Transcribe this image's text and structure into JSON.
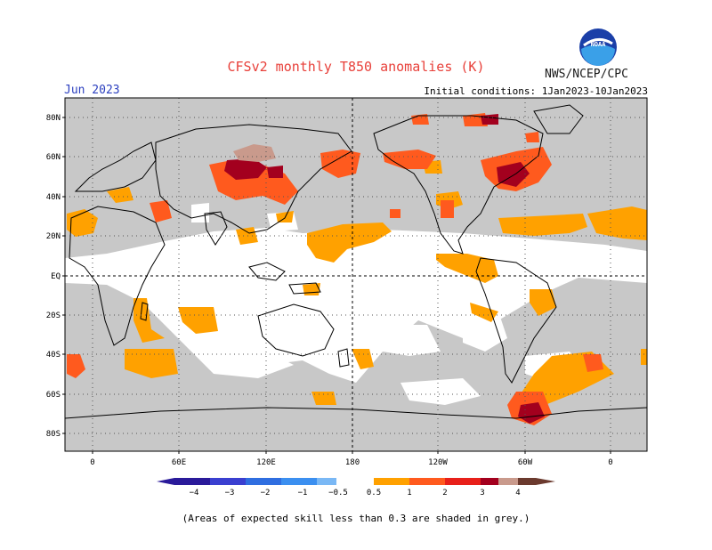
{
  "title": "CFSv2 monthly T850 anomalies (K)",
  "valid_month": "Jun 2023",
  "initial_conditions": "Initial conditions: 1Jan2023-10Jan2023",
  "agency": "NWS/NCEP/CPC",
  "logo_text": "NOAA",
  "lat_labels": [
    "80N",
    "60N",
    "40N",
    "20N",
    "EQ",
    "20S",
    "40S",
    "60S",
    "80S"
  ],
  "lon_labels": [
    "0",
    "60E",
    "120E",
    "180",
    "120W",
    "60W",
    "0"
  ],
  "colorbar": {
    "labels": [
      "−4",
      "−3",
      "−2",
      "−1",
      "−0.5",
      "0.5",
      "1",
      "2",
      "3",
      "4"
    ],
    "colors": [
      "#2a1a9a",
      "#3a3fd0",
      "#2f6ee0",
      "#3b8ff0",
      "#7ab8f5",
      "#ffffff",
      "#ffa100",
      "#ff5a1e",
      "#e8201a",
      "#a3001e",
      "#c99a8c",
      "#6b3a2e"
    ]
  },
  "skill_mask_color": "#c8c8c8",
  "footnote": "(Areas of expected skill less than 0.3 are shaded in grey.)"
}
